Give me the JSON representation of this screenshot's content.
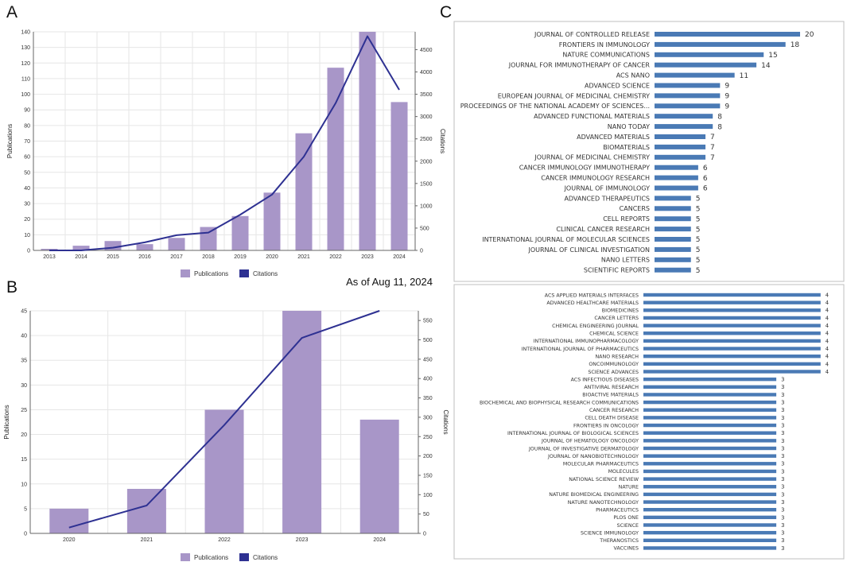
{
  "panels": {
    "a": "A",
    "b": "B",
    "c": "C"
  },
  "note": "As of Aug 11, 2024",
  "colors": {
    "bar": "#a896c8",
    "line": "#2e3192",
    "hbar": "#4a7ab5",
    "grid": "#e6e6e6",
    "axis": "#666666"
  },
  "chart_data": [
    {
      "id": "A",
      "type": "bar",
      "title": "",
      "categories": [
        "2013",
        "2014",
        "2015",
        "2016",
        "2017",
        "2018",
        "2019",
        "2020",
        "2021",
        "2022",
        "2023",
        "2024"
      ],
      "series": [
        {
          "name": "Publications",
          "type": "bar",
          "axis": "left",
          "values": [
            1,
            3,
            6,
            4,
            8,
            15,
            22,
            37,
            75,
            117,
            140,
            95
          ]
        },
        {
          "name": "Citations",
          "type": "line",
          "axis": "right",
          "values": [
            0,
            0,
            60,
            180,
            340,
            400,
            800,
            1250,
            2100,
            3300,
            4800,
            3600
          ]
        }
      ],
      "ylabel": "Publications",
      "ylim": [
        0,
        140
      ],
      "yticks": [
        0,
        10,
        20,
        30,
        40,
        50,
        60,
        70,
        80,
        90,
        100,
        110,
        120,
        130,
        140
      ],
      "y2label": "Citations",
      "y2lim": [
        0,
        4900
      ],
      "y2ticks": [
        0,
        500,
        1000,
        1500,
        2000,
        2500,
        3000,
        3500,
        4000,
        4500
      ],
      "legend": [
        "Publications",
        "Citations"
      ],
      "legend_position": "bottom",
      "grid": true
    },
    {
      "id": "B",
      "type": "bar",
      "title": "",
      "categories": [
        "2020",
        "2021",
        "2022",
        "2023",
        "2024"
      ],
      "series": [
        {
          "name": "Publications",
          "type": "bar",
          "axis": "left",
          "values": [
            5,
            9,
            25,
            45,
            23
          ]
        },
        {
          "name": "Citations",
          "type": "line",
          "axis": "right",
          "values": [
            15,
            72,
            280,
            505,
            575
          ]
        }
      ],
      "ylabel": "Publications",
      "ylim": [
        0,
        45
      ],
      "yticks": [
        0,
        5,
        10,
        15,
        20,
        25,
        30,
        35,
        40,
        45
      ],
      "y2label": "Citations",
      "y2lim": [
        0,
        575
      ],
      "y2ticks": [
        0,
        50,
        100,
        150,
        200,
        250,
        300,
        350,
        400,
        450,
        500,
        550
      ],
      "legend": [
        "Publications",
        "Citations"
      ],
      "legend_position": "bottom",
      "grid": true
    },
    {
      "id": "C1",
      "type": "bar",
      "orientation": "horizontal",
      "title": "",
      "categories": [
        "JOURNAL OF CONTROLLED RELEASE",
        "FRONTIERS IN IMMUNOLOGY",
        "NATURE COMMUNICATIONS",
        "JOURNAL FOR IMMUNOTHERAPY OF CANCER",
        "ACS NANO",
        "ADVANCED SCIENCE",
        "EUROPEAN JOURNAL OF MEDICINAL CHEMISTRY",
        "PROCEEDINGS OF THE NATIONAL ACADEMY OF SCIENCES...",
        "ADVANCED FUNCTIONAL MATERIALS",
        "NANO TODAY",
        "ADVANCED MATERIALS",
        "BIOMATERIALS",
        "JOURNAL OF MEDICINAL CHEMISTRY",
        "CANCER IMMUNOLOGY IMMUNOTHERAPY",
        "CANCER IMMUNOLOGY RESEARCH",
        "JOURNAL OF IMMUNOLOGY",
        "ADVANCED THERAPEUTICS",
        "CANCERS",
        "CELL REPORTS",
        "CLINICAL CANCER RESEARCH",
        "INTERNATIONAL JOURNAL OF MOLECULAR SCIENCES",
        "JOURNAL OF CLINICAL INVESTIGATION",
        "NANO LETTERS",
        "SCIENTIFIC REPORTS"
      ],
      "values": [
        20,
        18,
        15,
        14,
        11,
        9,
        9,
        9,
        8,
        8,
        7,
        7,
        7,
        6,
        6,
        6,
        5,
        5,
        5,
        5,
        5,
        5,
        5,
        5
      ],
      "xlim": [
        0,
        20
      ]
    },
    {
      "id": "C2",
      "type": "bar",
      "orientation": "horizontal",
      "title": "",
      "categories": [
        "ACS APPLIED MATERIALS INTERFACES",
        "ADVANCED HEALTHCARE MATERIALS",
        "BIOMEDICINES",
        "CANCER LETTERS",
        "CHEMICAL ENGINEERING JOURNAL",
        "CHEMICAL SCIENCE",
        "INTERNATIONAL IMMUNOPHARMACOLOGY",
        "INTERNATIONAL JOURNAL OF PHARMACEUTICS",
        "NANO RESEARCH",
        "ONCOIMMUNOLOGY",
        "SCIENCE ADVANCES",
        "ACS INFECTIOUS DISEASES",
        "ANTIVIRAL RESEARCH",
        "BIOACTIVE MATERIALS",
        "BIOCHEMICAL AND BIOPHYSICAL RESEARCH COMMUNICATIONS",
        "CANCER RESEARCH",
        "CELL DEATH DISEASE",
        "FRONTIERS IN ONCOLOGY",
        "INTERNATIONAL JOURNAL OF BIOLOGICAL SCIENCES",
        "JOURNAL OF HEMATOLOGY ONCOLOGY",
        "JOURNAL OF INVESTIGATIVE DERMATOLOGY",
        "JOURNAL OF NANOBIOTECHNOLOGY",
        "MOLECULAR PHARMACEUTICS",
        "MOLECULES",
        "NATIONAL SCIENCE REVIEW",
        "NATURE",
        "NATURE BIOMEDICAL ENGINEERING",
        "NATURE NANOTECHNOLOGY",
        "PHARMACEUTICS",
        "PLOS ONE",
        "SCIENCE",
        "SCIENCE IMMUNOLOGY",
        "THERANOSTICS",
        "VACCINES"
      ],
      "values": [
        4,
        4,
        4,
        4,
        4,
        4,
        4,
        4,
        4,
        4,
        4,
        3,
        3,
        3,
        3,
        3,
        3,
        3,
        3,
        3,
        3,
        3,
        3,
        3,
        3,
        3,
        3,
        3,
        3,
        3,
        3,
        3,
        3,
        3
      ],
      "xlim": [
        0,
        4
      ]
    }
  ]
}
